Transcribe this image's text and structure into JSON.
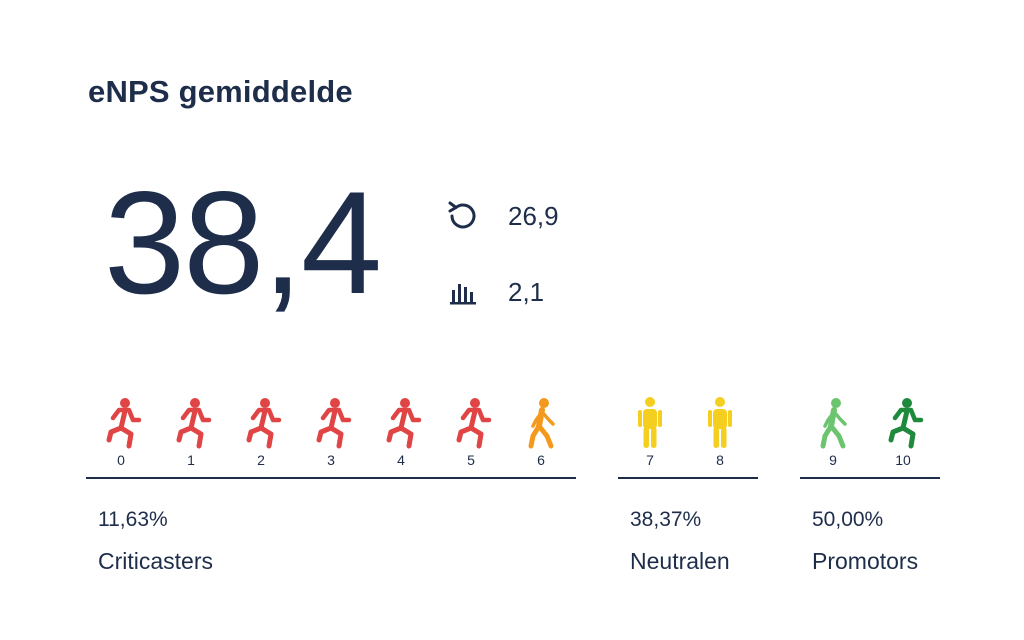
{
  "title": "eNPS gemiddelde",
  "score": "38,4",
  "stats": {
    "previous": {
      "icon": "history-icon",
      "value": "26,9"
    },
    "distribution": {
      "icon": "bar-chart-icon",
      "value": "2,1"
    }
  },
  "scale": [
    {
      "score": "0",
      "pose": "running",
      "color": "#e04444"
    },
    {
      "score": "1",
      "pose": "running",
      "color": "#e04444"
    },
    {
      "score": "2",
      "pose": "running",
      "color": "#e04444"
    },
    {
      "score": "3",
      "pose": "running",
      "color": "#e04444"
    },
    {
      "score": "4",
      "pose": "running",
      "color": "#e04444"
    },
    {
      "score": "5",
      "pose": "running",
      "color": "#e04444"
    },
    {
      "score": "6",
      "pose": "walking",
      "color": "#f39a1e"
    },
    {
      "score": "7",
      "pose": "standing",
      "color": "#f5cf1f"
    },
    {
      "score": "8",
      "pose": "standing",
      "color": "#f5cf1f"
    },
    {
      "score": "9",
      "pose": "walking",
      "color": "#6cc46f"
    },
    {
      "score": "10",
      "pose": "running",
      "color": "#1f8a3b"
    }
  ],
  "groups": {
    "critics": {
      "percentage": "11,63%",
      "label": "Criticasters"
    },
    "neutrals": {
      "percentage": "38,37%",
      "label": "Neutralen"
    },
    "promoters": {
      "percentage": "50,00%",
      "label": "Promotors"
    }
  },
  "colors": {
    "text": "#1e2d4a",
    "critic": "#e04444",
    "critic_6": "#f39a1e",
    "neutral": "#f5cf1f",
    "promoter_9": "#6cc46f",
    "promoter_10": "#1f8a3b"
  }
}
